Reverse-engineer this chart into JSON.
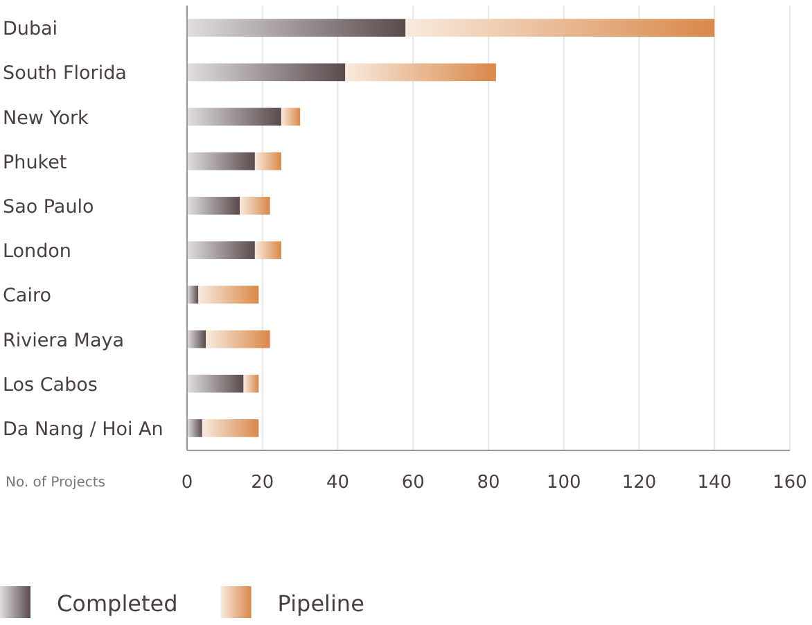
{
  "chart_data": {
    "type": "bar",
    "orientation": "horizontal",
    "stacked": true,
    "xlabel": "No. of Projects",
    "categories": [
      "Dubai",
      "South Florida",
      "New York",
      "Phuket",
      "Sao Paulo",
      "London",
      "Cairo",
      "Riviera Maya",
      "Los Cabos",
      "Da Nang / Hoi An"
    ],
    "series": [
      {
        "name": "Completed",
        "color": "#5a4a4c",
        "values": [
          58,
          42,
          25,
          18,
          14,
          18,
          3,
          5,
          15,
          4
        ]
      },
      {
        "name": "Pipeline",
        "color": "#d9884a",
        "values": [
          82,
          40,
          5,
          7,
          8,
          7,
          16,
          17,
          4,
          15
        ]
      }
    ],
    "xlim": [
      0,
      160
    ],
    "xticks": [
      0,
      20,
      40,
      60,
      80,
      100,
      120,
      140,
      160
    ],
    "grid": "x",
    "legend": "bottom left"
  }
}
